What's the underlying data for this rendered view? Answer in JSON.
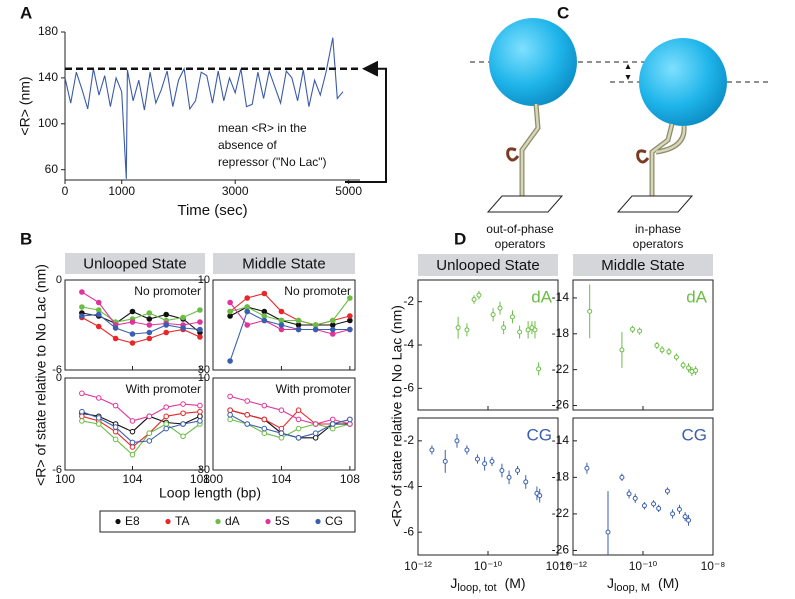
{
  "panel_labels": [
    "A",
    "B",
    "C",
    "D"
  ],
  "diagram": {
    "labels": [
      [
        "out-of-phase",
        "operators"
      ],
      [
        "in-phase",
        "operators"
      ]
    ]
  },
  "chart_data": [
    {
      "type": "line",
      "xlabel": "Time (sec)",
      "ylabel": "<R> (nm)",
      "color": "#3b5ba9",
      "x": [
        0,
        100,
        200,
        300,
        400,
        500,
        600,
        700,
        800,
        900,
        1000,
        1080,
        1100,
        1200,
        1300,
        1400,
        1500,
        1600,
        1700,
        1800,
        1900,
        2000,
        2100,
        2200,
        2300,
        2400,
        2500,
        2600,
        2700,
        2800,
        2900,
        3000,
        3100,
        3200,
        3300,
        3400,
        3500,
        3600,
        3700,
        3800,
        3900,
        4000,
        4100,
        4200,
        4300,
        4400,
        4500,
        4600,
        4720,
        4800,
        4900
      ],
      "values": [
        140,
        118,
        145,
        130,
        113,
        148,
        125,
        142,
        115,
        140,
        128,
        52,
        147,
        120,
        138,
        112,
        145,
        118,
        130,
        146,
        115,
        138,
        148,
        113,
        120,
        145,
        142,
        118,
        146,
        120,
        140,
        127,
        148,
        115,
        117,
        145,
        122,
        146,
        132,
        118,
        146,
        140,
        120,
        147,
        115,
        138,
        125,
        145,
        175,
        122,
        128
      ],
      "xlim": [
        0,
        5200
      ],
      "ylim": [
        51,
        180
      ],
      "xticks": [
        0,
        1000,
        3000,
        5000
      ],
      "yticks": [
        60,
        100,
        140,
        180
      ],
      "reference": {
        "value": 148,
        "annotation": [
          "mean <R> in the",
          "absence of",
          "repressor (\"No Lac\")"
        ]
      }
    },
    {
      "type": "line",
      "xlabel": "Loop length (bp)",
      "ylabel": "<R> of state relative to No Lac (nm)",
      "columns": [
        "Unlooped State",
        "Middle State"
      ],
      "x": [
        101,
        102,
        103,
        104,
        105,
        106,
        107,
        108
      ],
      "xlim": [
        100,
        108.3
      ],
      "xticks": [
        100,
        104,
        108
      ],
      "series": [
        {
          "name": "E8",
          "color": "#111111"
        },
        {
          "name": "TA",
          "color": "#e8272a"
        },
        {
          "name": "dA",
          "color": "#6abd45"
        },
        {
          "name": "5S",
          "color": "#e0349a"
        },
        {
          "name": "CG",
          "color": "#3a5fae"
        }
      ],
      "subplots": [
        {
          "column": 0,
          "row": 0,
          "note": "No promoter",
          "marker": "filled",
          "ylim": [
            -6,
            0
          ],
          "yticks": [
            -6,
            0
          ],
          "values": [
            [
              -2.2,
              -2.4,
              -2.9,
              -2.1,
              -2.6,
              -2.3,
              -2.6,
              -3.5
            ],
            [
              -2.5,
              -3.1,
              -3.9,
              -4.2,
              -3.9,
              -3.5,
              -3.3,
              -3.8
            ],
            [
              -1.8,
              -2.0,
              -2.8,
              -2.6,
              -2.2,
              -2.7,
              -2.5,
              -2.0
            ],
            [
              -0.8,
              -1.5,
              -3.0,
              -2.8,
              -3.0,
              -2.9,
              -3.0,
              -2.8
            ],
            [
              -2.4,
              -2.3,
              -3.2,
              -3.6,
              -3.5,
              -3.0,
              -3.2,
              -3.3
            ]
          ]
        },
        {
          "column": 0,
          "row": 1,
          "note": "With promoter",
          "marker": "open",
          "ylim": [
            -6,
            0
          ],
          "yticks": [
            -6,
            0
          ],
          "values": [
            [
              -2.3,
              -2.5,
              -3.0,
              -3.5,
              -2.5,
              -2.9,
              -3.0,
              -2.5
            ],
            [
              -2.5,
              -2.8,
              -3.5,
              -4.5,
              -3.6,
              -2.5,
              -2.3,
              -2.2
            ],
            [
              -2.8,
              -3.0,
              -4.0,
              -5.0,
              -3.6,
              -3.0,
              -3.8,
              -3.0
            ],
            [
              -1.0,
              -1.3,
              -1.8,
              -2.8,
              -2.5,
              -1.9,
              -1.7,
              -1.8
            ],
            [
              -2.2,
              -2.6,
              -3.2,
              -4.2,
              -4.1,
              -3.3,
              -3.0,
              -2.8
            ]
          ]
        },
        {
          "column": 1,
          "row": 0,
          "note": "No promoter",
          "marker": "filled",
          "ylim": [
            -30,
            -10
          ],
          "yticks": [
            -30,
            -10
          ],
          "values": [
            [
              -18,
              -16,
              -17,
              -19,
              -20,
              -20,
              -20,
              -19
            ],
            [
              -17,
              -14,
              -13,
              -17,
              -19,
              -20,
              -19,
              -18
            ],
            [
              -17,
              -16,
              -18,
              -19,
              -19,
              -20,
              -19,
              -14
            ],
            [
              -15,
              -20,
              -19,
              -21,
              -21,
              -21,
              -22,
              -21
            ],
            [
              -28,
              -17,
              -19,
              -20,
              -21,
              -21,
              -21,
              -21
            ]
          ]
        },
        {
          "column": 1,
          "row": 1,
          "note": "With promoter",
          "marker": "open",
          "ylim": [
            -30,
            -10
          ],
          "yticks": [
            -30,
            -10
          ],
          "values": [
            [
              -17,
              -18,
              -19,
              -22,
              -23,
              -23,
              -20,
              -20
            ],
            [
              -17,
              -18,
              -19,
              -21,
              -17,
              -20,
              -20,
              -19
            ],
            [
              -19,
              -20,
              -22,
              -23,
              -21,
              -20,
              -21,
              -20
            ],
            [
              -14,
              -15,
              -16,
              -17,
              -19,
              -20,
              -19,
              -20
            ],
            [
              -18,
              -20,
              -21,
              -22,
              -23,
              -22,
              -20,
              -19
            ]
          ]
        }
      ]
    },
    {
      "type": "scatter",
      "ylabel": "<R> of state relative to No Lac (nm)",
      "log_x": true,
      "columns": [
        "Unlooped State",
        "Middle State"
      ],
      "xlabels": [
        {
          "main": "J",
          "sub": "loop, tot",
          "unit": "(M)"
        },
        {
          "main": "J",
          "sub": "loop, M",
          "unit": "(M)"
        }
      ],
      "xlim": [
        1e-12,
        1e-08
      ],
      "xticks": [
        {
          "value": 1e-12,
          "label": "10⁻¹²"
        },
        {
          "value": 1e-10,
          "label": "10⁻¹⁰"
        },
        {
          "value": 1e-08,
          "label": "10⁻⁸"
        }
      ],
      "subplots": [
        {
          "column": 0,
          "row": 0,
          "name": "dA",
          "color": "#6abd45",
          "ylim": [
            -7,
            -1
          ],
          "yticks": [
            -6,
            -4,
            -2
          ],
          "x": [
            1.4e-11,
            2.5e-11,
            4e-11,
            5.5e-11,
            1.4e-10,
            2.2e-10,
            2.8e-10,
            5e-10,
            8e-10,
            1.4e-09,
            1.8e-09,
            2.2e-09,
            2.8e-09
          ],
          "values": [
            -3.2,
            -3.3,
            -1.9,
            -1.7,
            -2.6,
            -2.3,
            -3.2,
            -2.7,
            -3.4,
            -3.3,
            -3.2,
            -3.3,
            -5.1
          ],
          "yerr": [
            0.5,
            0.3,
            0.2,
            0.2,
            0.3,
            0.3,
            0.3,
            0.3,
            0.3,
            0.4,
            0.3,
            0.4,
            0.3
          ]
        },
        {
          "column": 1,
          "row": 0,
          "name": "dA",
          "color": "#6abd45",
          "ylim": [
            -26.5,
            -12
          ],
          "yticks": [
            -26,
            -22,
            -18,
            -14
          ],
          "x": [
            3e-12,
            2.5e-11,
            5e-11,
            8e-11,
            2.5e-10,
            3.5e-10,
            5.5e-10,
            9e-10,
            1.4e-09,
            2e-09,
            2.5e-09,
            3.2e-09
          ],
          "values": [
            -15.5,
            -19.8,
            -17.5,
            -17.7,
            -19.3,
            -19.8,
            -20,
            -20.6,
            -21.5,
            -21.8,
            -22.2,
            -22.1
          ],
          "yerr": [
            3,
            2,
            0.4,
            0.4,
            0.4,
            0.4,
            0.4,
            0.4,
            0.4,
            0.5,
            0.5,
            0.5
          ]
        },
        {
          "column": 0,
          "row": 1,
          "name": "CG",
          "color": "#3a5fae",
          "ylim": [
            -7,
            -1
          ],
          "yticks": [
            -6,
            -4,
            -2
          ],
          "x": [
            2.5e-12,
            6e-12,
            1.3e-11,
            2.5e-11,
            5e-11,
            8e-11,
            1.3e-10,
            2.5e-10,
            4e-10,
            7e-10,
            1.2e-09,
            2.5e-09,
            3e-09
          ],
          "values": [
            -2.4,
            -2.9,
            -2.0,
            -2.4,
            -2.8,
            -3.0,
            -2.9,
            -3.3,
            -3.6,
            -3.3,
            -3.8,
            -4.3,
            -4.4
          ],
          "yerr": [
            0.2,
            0.5,
            0.3,
            0.2,
            0.2,
            0.3,
            0.2,
            0.3,
            0.3,
            0.2,
            0.3,
            0.3,
            0.3
          ]
        },
        {
          "column": 1,
          "row": 1,
          "name": "CG",
          "color": "#3a5fae",
          "ylim": [
            -26.5,
            -11.5
          ],
          "yticks": [
            -26,
            -22,
            -18,
            -14
          ],
          "x": [
            2.5e-12,
            1e-11,
            2.5e-11,
            4e-11,
            6e-11,
            1.1e-10,
            2e-10,
            2.8e-10,
            5e-10,
            7e-10,
            1.1e-09,
            1.6e-09,
            2e-09
          ],
          "values": [
            -17,
            -24,
            -18,
            -19.8,
            -20.3,
            -21.1,
            -20.9,
            -21.4,
            -19.5,
            -22,
            -21.5,
            -22.3,
            -22.7
          ],
          "yerr": [
            0.6,
            4.5,
            0.4,
            0.5,
            0.5,
            0.4,
            0.4,
            0.4,
            0.4,
            0.5,
            0.5,
            0.5,
            0.6
          ]
        }
      ]
    }
  ]
}
